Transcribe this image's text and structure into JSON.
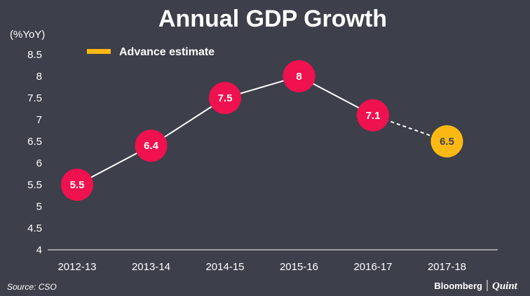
{
  "chart_data": {
    "type": "line",
    "title": "Annual GDP Growth",
    "ylabel": "(%YoY)",
    "xlabel": "",
    "categories": [
      "2012-13",
      "2013-14",
      "2014-15",
      "2015-16",
      "2016-17",
      "2017-18"
    ],
    "values": [
      5.5,
      6.4,
      7.5,
      8,
      7.1,
      6.5
    ],
    "data_labels": [
      "5.5",
      "6.4",
      "7.5",
      "8",
      "7.1",
      "6.5"
    ],
    "estimate_index": 5,
    "ylim": [
      4,
      8.5
    ],
    "yticks": [
      "4",
      "4.5",
      "5",
      "5.5",
      "6",
      "6.5",
      "7",
      "7.5",
      "8",
      "8.5"
    ],
    "legend": [
      {
        "label": "Advance estimate",
        "color": "#fdb913"
      }
    ],
    "legend_position": "top-left",
    "grid": false,
    "colors": {
      "actual": "#f0114f",
      "estimate": "#fdb913",
      "line": "#ffffff",
      "background": "#3d3f4a"
    }
  },
  "footer": {
    "source": "Source: CSO",
    "brand_primary": "Bloomberg",
    "brand_secondary": "Quint"
  }
}
